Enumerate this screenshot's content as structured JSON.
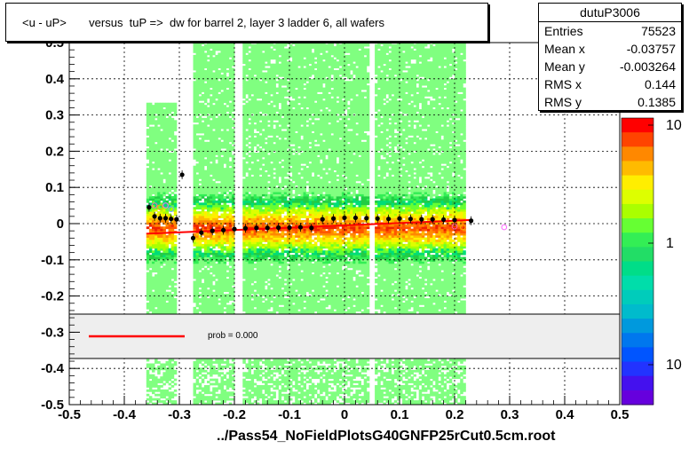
{
  "title": "<u - uP>       versus  tuP =>  dw for barrel 2, layer 3 ladder 6, all wafers",
  "stats": {
    "name": "dutuP3006",
    "rows": [
      {
        "label": "Entries",
        "value": "75523"
      },
      {
        "label": "Mean x",
        "value": "-0.03757"
      },
      {
        "label": "Mean y",
        "value": "-0.003264"
      },
      {
        "label": "RMS x",
        "value": "0.144"
      },
      {
        "label": "RMS y",
        "value": "0.1385"
      }
    ]
  },
  "footer_label": "../Pass54_NoFieldPlotsG40GNFP25rCut0.5cm.root",
  "legend": {
    "prob_text": "prob = 0.000",
    "line_color": "#ff0000"
  },
  "colorbar": {
    "labels": [
      "10",
      "1",
      "10"
    ]
  },
  "chart_data": {
    "type": "heatmap",
    "title": "<u - uP>       versus  tuP =>  dw for barrel 2, layer 3 ladder 6, all wafers",
    "xlim": [
      -0.5,
      0.5
    ],
    "ylim": [
      -0.5,
      0.5
    ],
    "x_ticks": [
      "-0.5",
      "-0.4",
      "-0.3",
      "-0.2",
      "-0.1",
      "0",
      "0.1",
      "0.2",
      "0.3",
      "0.4",
      "0.5"
    ],
    "y_ticks": [
      "-0.5",
      "-0.4",
      "-0.3",
      "-0.2",
      "-0.1",
      "0",
      "0.1",
      "0.2",
      "0.3",
      "0.4",
      "0.5"
    ],
    "grid": true,
    "profile_points": [
      {
        "x": -0.355,
        "y": 0.045
      },
      {
        "x": -0.345,
        "y": 0.02
      },
      {
        "x": -0.335,
        "y": 0.015
      },
      {
        "x": -0.325,
        "y": 0.015
      },
      {
        "x": -0.315,
        "y": 0.013
      },
      {
        "x": -0.305,
        "y": 0.012
      },
      {
        "x": -0.295,
        "y": 0.135
      },
      {
        "x": -0.275,
        "y": -0.04
      },
      {
        "x": -0.26,
        "y": -0.025
      },
      {
        "x": -0.24,
        "y": -0.02
      },
      {
        "x": -0.22,
        "y": -0.018
      },
      {
        "x": -0.2,
        "y": -0.015
      },
      {
        "x": -0.18,
        "y": -0.013
      },
      {
        "x": -0.16,
        "y": -0.012
      },
      {
        "x": -0.14,
        "y": -0.012
      },
      {
        "x": -0.12,
        "y": -0.011
      },
      {
        "x": -0.1,
        "y": -0.011
      },
      {
        "x": -0.08,
        "y": -0.01
      },
      {
        "x": -0.06,
        "y": -0.012
      },
      {
        "x": -0.04,
        "y": 0.012
      },
      {
        "x": -0.02,
        "y": 0.014
      },
      {
        "x": 0.0,
        "y": 0.016
      },
      {
        "x": 0.02,
        "y": 0.016
      },
      {
        "x": 0.04,
        "y": 0.015
      },
      {
        "x": 0.06,
        "y": 0.014
      },
      {
        "x": 0.08,
        "y": 0.013
      },
      {
        "x": 0.1,
        "y": 0.014
      },
      {
        "x": 0.12,
        "y": 0.013
      },
      {
        "x": 0.14,
        "y": 0.012
      },
      {
        "x": 0.16,
        "y": 0.012
      },
      {
        "x": 0.18,
        "y": 0.011
      },
      {
        "x": 0.2,
        "y": 0.01
      },
      {
        "x": 0.23,
        "y": 0.008
      }
    ],
    "fit_line": [
      {
        "x": -0.36,
        "y": -0.028
      },
      {
        "x": 0.23,
        "y": 0.01
      }
    ],
    "outlier_circles": [
      {
        "x": -0.345,
        "y": 0.05
      },
      {
        "x": -0.335,
        "y": 0.045
      },
      {
        "x": -0.325,
        "y": 0.05
      },
      {
        "x": -0.315,
        "y": 0.04
      },
      {
        "x": 0.2,
        "y": -0.008
      },
      {
        "x": 0.215,
        "y": -0.01
      },
      {
        "x": 0.29,
        "y": -0.01
      }
    ],
    "colorbar_range": [
      0.1,
      20
    ],
    "colorbar_scale": "log"
  }
}
